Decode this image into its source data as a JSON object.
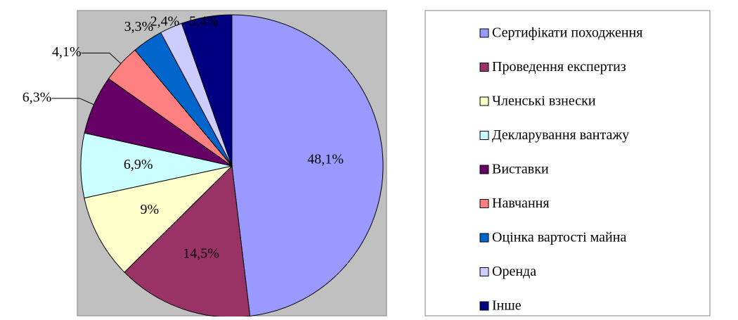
{
  "chart_data": {
    "type": "pie",
    "categories": [
      "Сертифікати походження",
      "Проведення експертиз",
      "Членські взнески",
      "Декларування вантажу",
      "Виставки",
      "Навчання",
      "Оцінка вартості майна",
      "Оренда",
      "Інше"
    ],
    "values": [
      48.1,
      14.5,
      9,
      6.9,
      6.3,
      4.1,
      3.3,
      2.4,
      5.4
    ],
    "value_labels": [
      "48,1%",
      "14,5%",
      "9%",
      "6,9%",
      "6,3%",
      "4,1%",
      "3,3%",
      "2,4%",
      "5,4%"
    ],
    "colors": [
      "#9999ff",
      "#993366",
      "#ffffcc",
      "#ccffff",
      "#660066",
      "#ff8080",
      "#0066cc",
      "#ccccff",
      "#000080"
    ],
    "legend": "right"
  }
}
